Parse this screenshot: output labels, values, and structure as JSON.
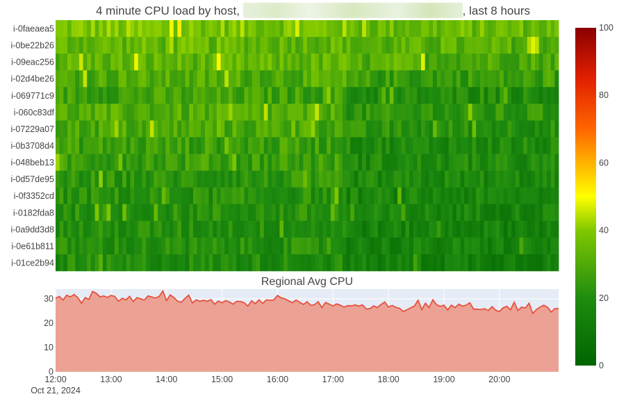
{
  "title": {
    "prefix": "4 minute CPU load by host, ",
    "suffix": ", last 8 hours"
  },
  "chart_data": [
    {
      "type": "heatmap",
      "title": "4 minute CPU load by host, [redacted], last 8 hours",
      "hosts": [
        "i-0faeaea5",
        "i-0be22b26",
        "i-09eac256",
        "i-02d4be26",
        "i-069771c9",
        "i-060c83df",
        "i-07229a07",
        "i-0b3708d4",
        "i-048beb13",
        "i-0d57de95",
        "i-0f3352cd",
        "i-0182fda8",
        "i-0a9dd3d8",
        "i-0e61b811",
        "i-01ce2b94"
      ],
      "time_start": "2024-10-21 12:00",
      "time_end": "2024-10-21 20:28",
      "interval_minutes": 4,
      "approx_mean_load_by_host": [
        38,
        34,
        33,
        30,
        24,
        27,
        26,
        23,
        23,
        22,
        21,
        21,
        20,
        20,
        19
      ],
      "load_trend_per_host": "higher before 16:45 for upper hosts, dropping afterwards",
      "colorscale": [
        {
          "value": 0,
          "color": "#006400"
        },
        {
          "value": 20,
          "color": "#1f8c10"
        },
        {
          "value": 40,
          "color": "#80c800"
        },
        {
          "value": 50,
          "color": "#ffff00"
        },
        {
          "value": 70,
          "color": "#ff6600"
        },
        {
          "value": 85,
          "color": "#e02000"
        },
        {
          "value": 100,
          "color": "#8b0000"
        }
      ],
      "colorbar": {
        "min": 0,
        "max": 100,
        "ticks": [
          0,
          20,
          40,
          60,
          80,
          100
        ]
      }
    },
    {
      "type": "area",
      "title": "Regional Avg CPU",
      "x_start": "2024-10-21 12:00",
      "x_interval_minutes": 4,
      "x_ticks": [
        "12:00",
        "13:00",
        "14:00",
        "15:00",
        "16:00",
        "17:00",
        "18:00",
        "19:00",
        "20:00"
      ],
      "x_date_label": "Oct 21, 2024",
      "y_ticks": [
        0,
        10,
        20,
        30
      ],
      "ylim": [
        0,
        34
      ],
      "line_color": "#e8503c",
      "fill_color": "#eba295",
      "values": [
        30.2,
        31.0,
        29.5,
        31.5,
        30.8,
        31.8,
        30.5,
        28.2,
        30.5,
        29.8,
        33.0,
        32.3,
        30.8,
        31.2,
        30.6,
        31.4,
        31.0,
        29.0,
        30.2,
        29.6,
        31.0,
        28.9,
        30.5,
        30.0,
        29.5,
        31.2,
        30.8,
        30.3,
        31.0,
        33.2,
        29.3,
        31.6,
        30.5,
        29.0,
        28.6,
        30.2,
        31.5,
        28.3,
        29.6,
        29.0,
        29.4,
        29.0,
        29.7,
        27.8,
        29.1,
        28.4,
        29.3,
        28.7,
        27.8,
        29.0,
        28.9,
        28.4,
        27.0,
        29.2,
        28.0,
        29.6,
        28.1,
        29.6,
        29.4,
        29.6,
        31.4,
        30.4,
        30.0,
        29.2,
        28.4,
        29.5,
        28.6,
        27.7,
        28.8,
        27.3,
        27.6,
        28.8,
        26.4,
        28.5,
        27.8,
        27.1,
        27.9,
        27.4,
        26.6,
        27.2,
        27.1,
        27.5,
        27.0,
        27.5,
        25.8,
        26.0,
        27.1,
        26.4,
        27.7,
        28.7,
        26.6,
        27.3,
        26.5,
        26.1,
        24.8,
        25.5,
        26.3,
        27.0,
        29.4,
        25.6,
        28.2,
        26.4,
        29.6,
        27.6,
        26.9,
        27.4,
        25.4,
        27.4,
        26.4,
        27.8,
        27.0,
        27.4,
        28.4,
        25.8,
        25.7,
        25.6,
        25.9,
        25.2,
        26.8,
        25.3,
        24.8,
        26.3,
        26.9,
        25.5,
        28.6,
        25.2,
        26.6,
        26.2,
        28.2,
        24.0,
        25.6,
        26.6,
        27.4,
        26.5,
        24.6,
        26.0
      ]
    }
  ]
}
